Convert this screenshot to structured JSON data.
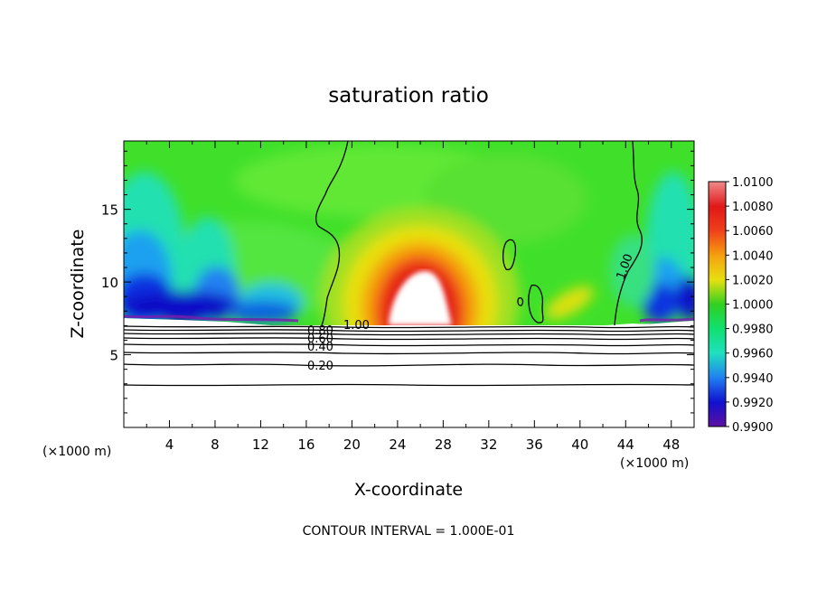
{
  "chart_data": {
    "type": "heatmap",
    "title": "saturation ratio",
    "xlabel": "X-coordinate",
    "ylabel": "Z-coordinate",
    "x_unit_label": "(×1000 m)",
    "x_unit_label_right": "(×1000 m)",
    "xlim": [
      0,
      50
    ],
    "ylim": [
      0,
      19.7
    ],
    "x_ticks": [
      4,
      8,
      12,
      16,
      20,
      24,
      28,
      32,
      36,
      40,
      44,
      48
    ],
    "y_ticks": [
      5,
      10,
      15
    ],
    "x_tick_labels": [
      "4",
      "8",
      "12",
      "16",
      "20",
      "24",
      "28",
      "32",
      "36",
      "40",
      "44",
      "48"
    ],
    "y_tick_labels": [
      "5",
      "10",
      "15"
    ],
    "grid": false,
    "footer": "CONTOUR INTERVAL = 1.000E-01",
    "colorbar": {
      "placement": "right",
      "min": 0.99,
      "max": 1.01,
      "labels": [
        "1.0100",
        "1.0080",
        "1.0060",
        "1.0040",
        "1.0020",
        "1.0000",
        "0.9980",
        "0.9960",
        "0.9940",
        "0.9920",
        "0.9900"
      ],
      "colors": [
        "#f08a8a",
        "#e01818",
        "#f0401a",
        "#f5a010",
        "#e8e010",
        "#30d020",
        "#10e070",
        "#20e0c0",
        "#2080f0",
        "#1010d0",
        "#6010a0"
      ]
    },
    "contour_labels": [
      "1.00",
      "0.80",
      "0.60",
      "0.40",
      "0.20",
      "1.00"
    ],
    "contour_levels": [
      0.2,
      0.4,
      0.6,
      0.8,
      1.0
    ],
    "lower_contour_heights_km": [
      3.0,
      4.5,
      5.3,
      5.8,
      6.2,
      6.5,
      6.7,
      6.9
    ],
    "saturated_region_base_km": 7.3
  }
}
